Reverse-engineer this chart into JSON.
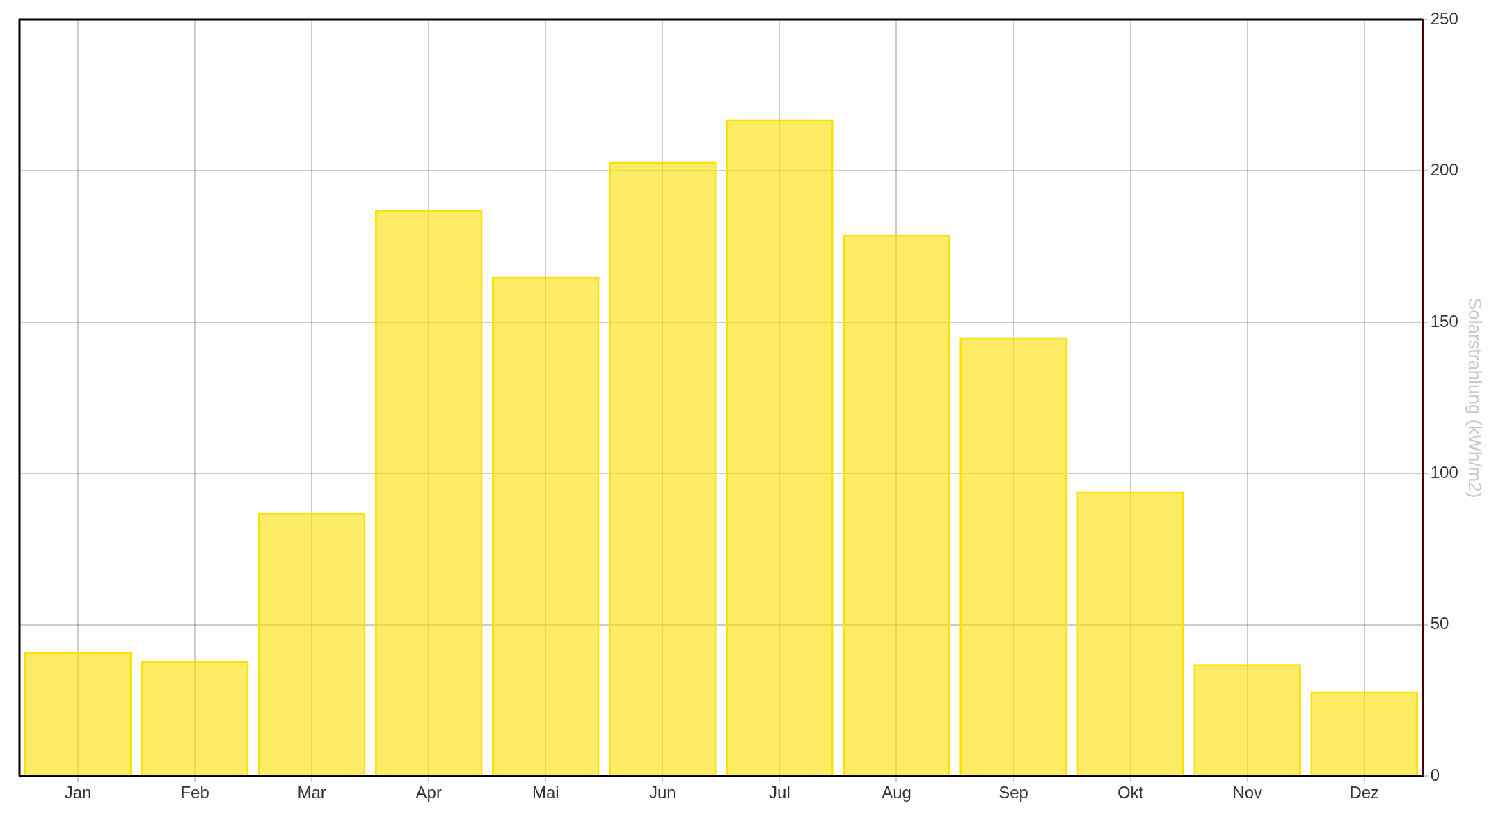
{
  "chart_data": {
    "type": "bar",
    "ylabel": "Solarstrahlung (kWh/m2)",
    "categories": [
      "Jan",
      "Feb",
      "Mar",
      "Apr",
      "Mai",
      "Jun",
      "Jul",
      "Aug",
      "Sep",
      "Okt",
      "Nov",
      "Dez"
    ],
    "values": [
      41,
      38,
      87,
      187,
      165,
      203,
      217,
      179,
      145,
      94,
      37,
      28
    ],
    "color": "#ffe000",
    "ylim": [
      0,
      250
    ],
    "yticks": [
      0,
      50,
      100,
      150,
      200,
      250
    ],
    "grid": true,
    "legend": false
  }
}
